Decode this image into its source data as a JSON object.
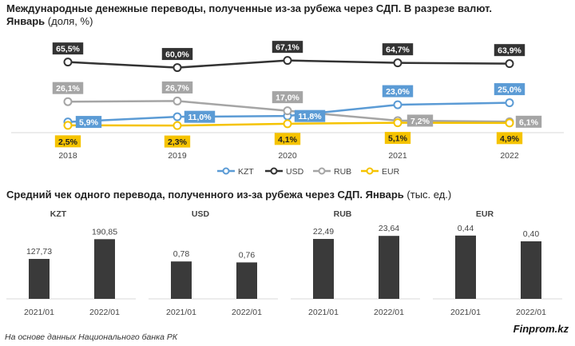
{
  "header": {
    "title_line1": "Международные денежные переводы, полученные из-за рубежа через СДП. В разрезе валют.",
    "title_line2_bold": "Январь",
    "title_line2_unit": " (доля, %)",
    "title2_bold": "Средний чек одного перевода, полученного из-за рубежа через СДП. Январь",
    "title2_unit": " (тыс. ед.)"
  },
  "footer": {
    "source": "На основе данных Национального банка РК",
    "brand": "Finprom.kz"
  },
  "chart_data": [
    {
      "type": "line",
      "x": [
        "2018",
        "2019",
        "2020",
        "2021",
        "2022"
      ],
      "ylim": [
        0,
        70
      ],
      "series": [
        {
          "name": "KZT",
          "color": "#5b9bd5",
          "values": [
            5.9,
            11.0,
            11.8,
            23.0,
            25.0
          ],
          "labels": [
            "5,9%",
            "11,0%",
            "11,8%",
            "23,0%",
            "25,0%"
          ]
        },
        {
          "name": "USD",
          "color": "#333333",
          "values": [
            65.5,
            60.0,
            67.1,
            64.7,
            63.9
          ],
          "labels": [
            "65,5%",
            "60,0%",
            "67,1%",
            "64,7%",
            "63,9%"
          ]
        },
        {
          "name": "RUB",
          "color": "#a5a5a5",
          "values": [
            26.1,
            26.7,
            17.0,
            7.2,
            6.1
          ],
          "labels": [
            "26,1%",
            "26,7%",
            "17,0%",
            "7,2%",
            "6,1%"
          ]
        },
        {
          "name": "EUR",
          "color": "#f5c300",
          "values": [
            2.5,
            2.3,
            4.1,
            5.1,
            4.9
          ],
          "labels": [
            "2,5%",
            "2,3%",
            "4,1%",
            "5,1%",
            "4,9%"
          ]
        }
      ]
    },
    {
      "type": "bar",
      "panels": [
        {
          "name": "KZT",
          "categories": [
            "2021/01",
            "2022/01"
          ],
          "values": [
            127.73,
            190.85
          ],
          "labels": [
            "127,73",
            "190,85"
          ],
          "ylim": [
            0,
            230
          ]
        },
        {
          "name": "USD",
          "categories": [
            "2021/01",
            "2022/01"
          ],
          "values": [
            0.78,
            0.76
          ],
          "labels": [
            "0,78",
            "0,76"
          ],
          "ylim": [
            0,
            1.5
          ]
        },
        {
          "name": "RUB",
          "categories": [
            "2021/01",
            "2022/01"
          ],
          "values": [
            22.49,
            23.64
          ],
          "labels": [
            "22,49",
            "23,64"
          ],
          "ylim": [
            0,
            27
          ]
        },
        {
          "name": "EUR",
          "categories": [
            "2021/01",
            "2022/01"
          ],
          "values": [
            0.44,
            0.4
          ],
          "labels": [
            "0,44",
            "0,40"
          ],
          "ylim": [
            0,
            0.5
          ]
        }
      ],
      "bar_color": "#3a3a3a"
    }
  ]
}
